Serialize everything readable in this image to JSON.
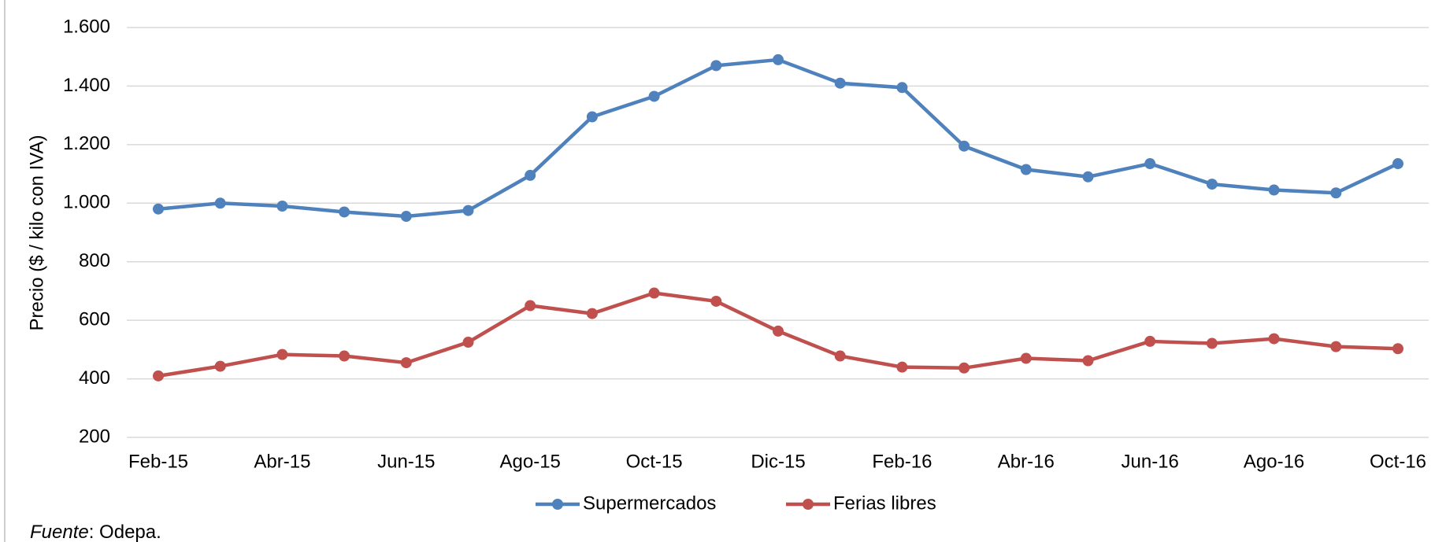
{
  "chart_data": {
    "type": "line",
    "y_label": "Precio ($ / kilo con IVA)",
    "categories": [
      "Feb-15",
      null,
      "Abr-15",
      null,
      "Jun-15",
      null,
      "Ago-15",
      null,
      "Oct-15",
      null,
      "Dic-15",
      null,
      "Feb-16",
      null,
      "Abr-16",
      null,
      "Jun-16",
      null,
      "Ago-16",
      null,
      "Oct-16"
    ],
    "series": [
      {
        "name": "Supermercados",
        "color": "#4f81bd",
        "values": [
          980,
          1000,
          990,
          970,
          955,
          975,
          1095,
          1295,
          1365,
          1470,
          1490,
          1410,
          1395,
          1195,
          1115,
          1090,
          1135,
          1065,
          1045,
          1035,
          1135
        ]
      },
      {
        "name": "Ferias libres",
        "color": "#c0504d",
        "values": [
          410,
          443,
          483,
          478,
          455,
          525,
          650,
          623,
          693,
          665,
          563,
          478,
          440,
          437,
          470,
          462,
          528,
          521,
          537,
          510,
          503
        ]
      }
    ],
    "ylim": [
      200,
      1600
    ],
    "yticks": [
      200,
      400,
      600,
      800,
      {
        "value": 1000,
        "label": "1.000"
      },
      {
        "value": 1200,
        "label": "1.200"
      },
      {
        "value": 1400,
        "label": "1.400"
      },
      {
        "value": 1600,
        "label": "1.600"
      }
    ],
    "grid": true,
    "legend": "bottom",
    "source_label": "Fuente",
    "source_text": ": Odepa."
  }
}
